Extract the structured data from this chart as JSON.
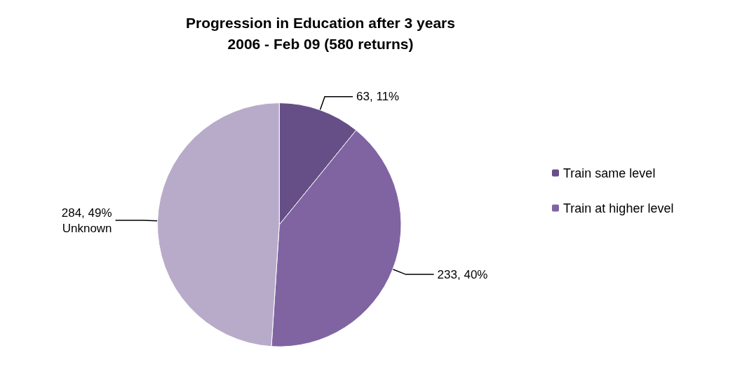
{
  "chart_data": {
    "type": "pie",
    "title": "Progression in Education after 3 years\n2006 - Feb 09 (580 returns)",
    "categories": [
      "Train same level",
      "Train at higher level",
      null
    ],
    "values": [
      63,
      233,
      284
    ],
    "colors": [
      "#664f87",
      "#8064a2",
      "#b8abca"
    ],
    "value_labels": [
      "63, 11%",
      "233, 40%",
      "284, 49%\nUnknown"
    ],
    "legend": "right"
  }
}
